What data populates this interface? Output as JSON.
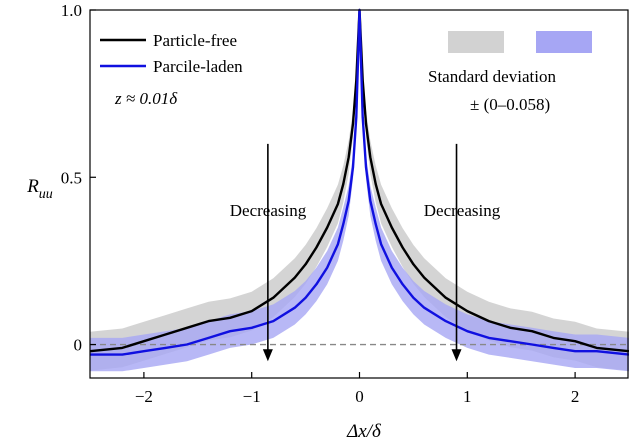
{
  "chart_data": {
    "type": "line",
    "xlabel": "Δx/δ",
    "ylabel": "R_uu",
    "xlim": [
      -2.5,
      2.5
    ],
    "ylim": [
      -0.1,
      1.0
    ],
    "x_ticks": [
      -2,
      -1,
      0,
      1,
      2
    ],
    "x_tick_labels": [
      "−2",
      "−1",
      "0",
      "1",
      "2"
    ],
    "y_ticks": [
      0,
      0.5,
      1.0
    ],
    "y_tick_labels": [
      "0",
      "0.5",
      "1.0"
    ],
    "x": [
      -2.5,
      -2.2,
      -2.0,
      -1.8,
      -1.6,
      -1.4,
      -1.2,
      -1.0,
      -0.8,
      -0.6,
      -0.5,
      -0.4,
      -0.3,
      -0.2,
      -0.15,
      -0.1,
      -0.06,
      -0.03,
      0,
      0.03,
      0.06,
      0.1,
      0.15,
      0.2,
      0.3,
      0.4,
      0.5,
      0.6,
      0.8,
      1.0,
      1.2,
      1.4,
      1.6,
      1.8,
      2.0,
      2.2,
      2.5
    ],
    "series": [
      {
        "name": "Particle-free",
        "color": "#000000",
        "values": [
          -0.02,
          -0.01,
          0.01,
          0.03,
          0.05,
          0.07,
          0.08,
          0.1,
          0.14,
          0.2,
          0.24,
          0.29,
          0.35,
          0.42,
          0.48,
          0.56,
          0.66,
          0.79,
          1.0,
          0.79,
          0.66,
          0.56,
          0.48,
          0.42,
          0.35,
          0.29,
          0.24,
          0.2,
          0.14,
          0.1,
          0.07,
          0.05,
          0.04,
          0.02,
          0.01,
          -0.01,
          -0.02
        ],
        "band": [
          0.058,
          0.058,
          0.058,
          0.058,
          0.058,
          0.058,
          0.058,
          0.058,
          0.058,
          0.058,
          0.058,
          0.058,
          0.058,
          0.058,
          0.055,
          0.05,
          0.04,
          0.02,
          0.0,
          0.02,
          0.04,
          0.05,
          0.055,
          0.058,
          0.058,
          0.058,
          0.058,
          0.058,
          0.058,
          0.058,
          0.058,
          0.058,
          0.058,
          0.058,
          0.058,
          0.058,
          0.058
        ]
      },
      {
        "name": "Parcile-laden",
        "color": "#1010e0",
        "values": [
          -0.03,
          -0.03,
          -0.02,
          -0.01,
          0.0,
          0.02,
          0.04,
          0.05,
          0.07,
          0.11,
          0.14,
          0.18,
          0.23,
          0.3,
          0.36,
          0.43,
          0.53,
          0.68,
          1.0,
          0.68,
          0.53,
          0.43,
          0.36,
          0.3,
          0.23,
          0.18,
          0.14,
          0.11,
          0.07,
          0.04,
          0.02,
          0.01,
          0.0,
          -0.01,
          -0.02,
          -0.02,
          -0.03
        ],
        "band": [
          0.05,
          0.05,
          0.05,
          0.05,
          0.05,
          0.05,
          0.05,
          0.05,
          0.05,
          0.05,
          0.05,
          0.05,
          0.05,
          0.05,
          0.05,
          0.045,
          0.035,
          0.02,
          0.0,
          0.02,
          0.035,
          0.045,
          0.05,
          0.05,
          0.05,
          0.05,
          0.05,
          0.05,
          0.05,
          0.05,
          0.05,
          0.05,
          0.05,
          0.05,
          0.05,
          0.05,
          0.05
        ]
      }
    ],
    "reference_line": {
      "y": 0,
      "style": "dashed",
      "color": "#888888"
    },
    "band_colors": {
      "Particle-free": "#d2d2d2",
      "Parcile-laden": "#a6a6f4"
    },
    "legend": {
      "placement": "top-left"
    },
    "annotations": {
      "condition": "z ≈ 0.01δ",
      "sd_title": "Standard deviation",
      "sd_range": "± (0–0.058)",
      "left_arrow": {
        "text": "Decreasing",
        "x": -0.85,
        "y_from": 0.6,
        "y_to": -0.05
      },
      "right_arrow": {
        "text": "Decreasing",
        "x": 0.9,
        "y_from": 0.6,
        "y_to": -0.05
      }
    },
    "grid": false
  }
}
